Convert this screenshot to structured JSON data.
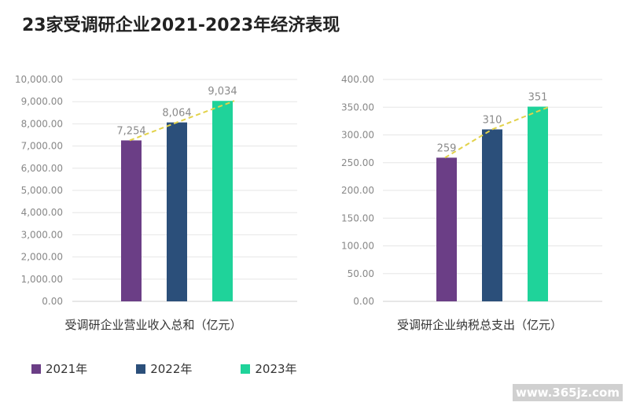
{
  "title": "23家受调研企业2021-2023年经济表现",
  "colors": {
    "2021": "#6b3e86",
    "2022": "#2b4f7a",
    "2023": "#1fd39a",
    "trend": "#e2d24a",
    "axis_text": "#888888",
    "grid": "#e6e6e6"
  },
  "legend": [
    {
      "label": "2021年",
      "color": "#6b3e86"
    },
    {
      "label": "2022年",
      "color": "#2b4f7a"
    },
    {
      "label": "2023年",
      "color": "#1fd39a"
    }
  ],
  "watermark": "www.365jz.com",
  "chart_data": [
    {
      "type": "bar",
      "categories": [
        "2021年",
        "2022年",
        "2023年"
      ],
      "values": [
        7254,
        8064,
        9034
      ],
      "value_labels": [
        "7,254",
        "8,064",
        "9,034"
      ],
      "xlabel": "受调研企业营业收入总和（亿元）",
      "ylabel": "",
      "ylim": [
        0,
        10000
      ],
      "yticks": [
        "0.00",
        "1,000.00",
        "2,000.00",
        "3,000.00",
        "4,000.00",
        "5,000.00",
        "6,000.00",
        "7,000.00",
        "8,000.00",
        "9,000.00",
        "10,000.00"
      ],
      "trend_line": true,
      "grid": true
    },
    {
      "type": "bar",
      "categories": [
        "2021年",
        "2022年",
        "2023年"
      ],
      "values": [
        259,
        310,
        351
      ],
      "value_labels": [
        "259",
        "310",
        "351"
      ],
      "xlabel": "受调研企业纳税总支出（亿元）",
      "ylabel": "",
      "ylim": [
        0,
        400
      ],
      "yticks": [
        "0.00",
        "50.00",
        "100.00",
        "150.00",
        "200.00",
        "250.00",
        "300.00",
        "350.00",
        "400.00"
      ],
      "trend_line": true,
      "grid": true
    }
  ]
}
